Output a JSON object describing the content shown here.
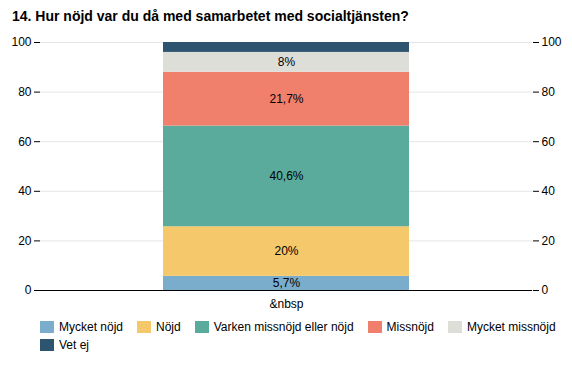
{
  "chart_data": {
    "type": "bar",
    "stacked": true,
    "title": "14. Hur nöjd var du då med samarbetet med socialtjänsten?",
    "categories": [
      "&nbsp"
    ],
    "series": [
      {
        "name": "Mycket nöjd",
        "color": "#7aadcb",
        "values": [
          5.7
        ],
        "value_labels": [
          "5,7%"
        ]
      },
      {
        "name": "Nöjd",
        "color": "#f5c96b",
        "values": [
          20.0
        ],
        "value_labels": [
          "20%"
        ]
      },
      {
        "name": "Varken missnöjd eller nöjd",
        "color": "#5aab9b",
        "values": [
          40.6
        ],
        "value_labels": [
          "40,6%"
        ]
      },
      {
        "name": "Missnöjd",
        "color": "#f07f6b",
        "values": [
          21.7
        ],
        "value_labels": [
          "21,7%"
        ]
      },
      {
        "name": "Mycket missnöjd",
        "color": "#deded8",
        "values": [
          8.0
        ],
        "value_labels": [
          "8%"
        ]
      },
      {
        "name": "Vet ej",
        "color": "#2e5470",
        "values": [
          4.0
        ],
        "value_labels": [
          null
        ]
      }
    ],
    "data_labels": true,
    "ylim": [
      0,
      100
    ],
    "yticks": [
      0,
      20,
      40,
      60,
      80,
      100
    ],
    "y2lim": [
      0,
      100
    ],
    "y2ticks": [
      0,
      20,
      40,
      60,
      80,
      100
    ],
    "grid": true,
    "legend": "bottom"
  }
}
